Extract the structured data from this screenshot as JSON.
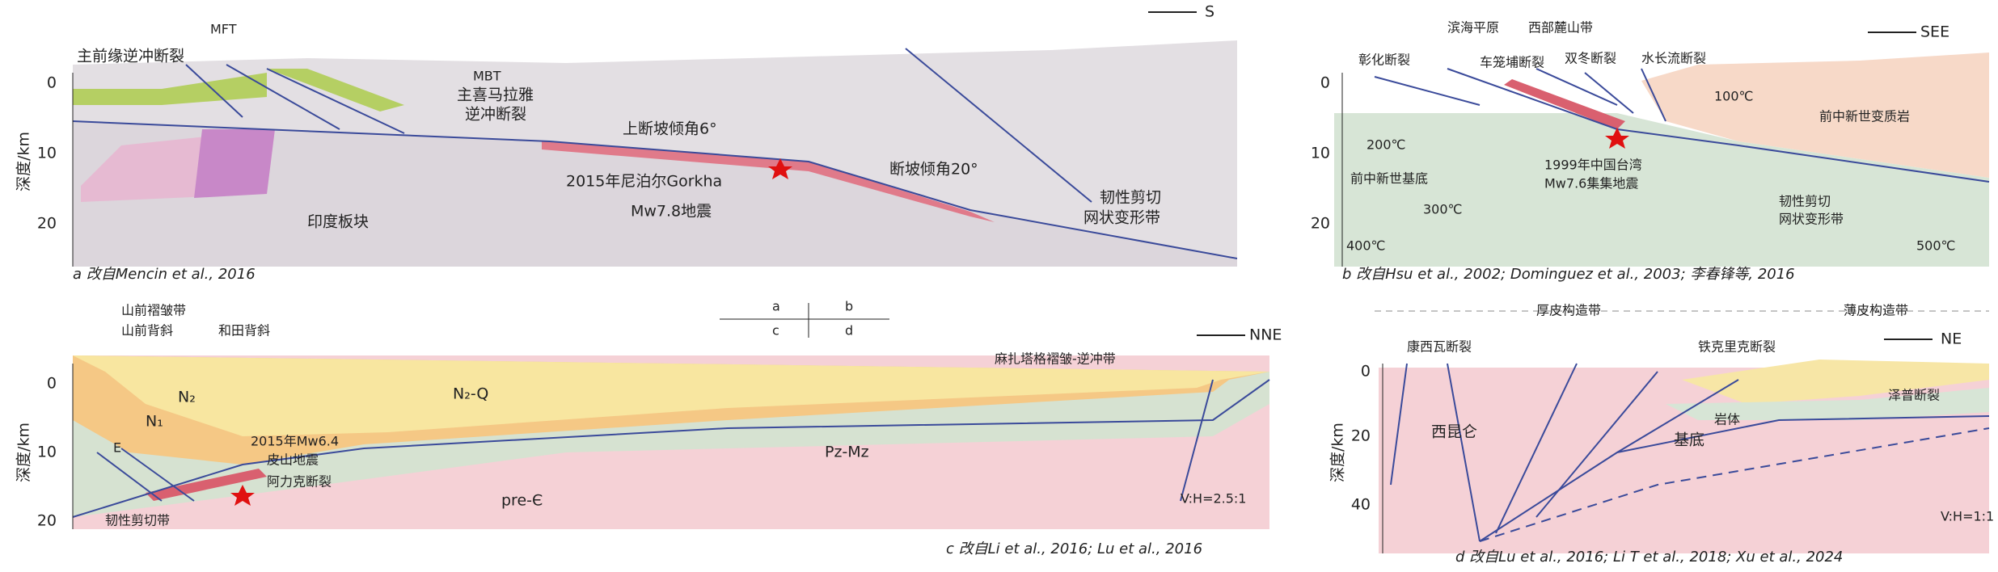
{
  "panel_a": {
    "direction": "S",
    "axis_title": "深度/km",
    "yticks": [
      "0",
      "10",
      "20"
    ],
    "labels": [
      "MFT",
      "主前缘逆冲断裂",
      "MBT",
      "主喜马拉雅",
      "逆冲断裂",
      "上断坡倾角6°",
      "2015年尼泊尔Gorkha",
      "Mw7.8地震",
      "断坡倾角20°",
      "印度板块",
      "韧性剪切",
      "网状变形带"
    ],
    "caption": "a 改自Mencin et al., 2016"
  },
  "panel_b": {
    "direction": "SEE",
    "yticks": [
      "0",
      "10",
      "20"
    ],
    "labels": [
      "滨海平原",
      "西部麓山带",
      "彰化断裂",
      "车笼埔断裂",
      "双冬断裂",
      "水长流断裂",
      "100℃",
      "200℃",
      "300℃",
      "400℃",
      "500℃",
      "前中新世变质岩",
      "前中新世基底",
      "1999年中国台湾",
      "Mw7.6集集地震",
      "韧性剪切",
      "网状变形带"
    ],
    "caption": "b 改自Hsu et al., 2002; Dominguez et al., 2003; 李春锋等, 2016"
  },
  "panel_c": {
    "direction": "NNE",
    "axis_title": "深度/km",
    "yticks": [
      "0",
      "10",
      "20"
    ],
    "labels": [
      "山前褶皱带",
      "山前背斜",
      "和田背斜",
      "麻扎塔格褶皱-逆冲带",
      "N₂",
      "N₁",
      "N₂-Q",
      "E",
      "Pz-Mz",
      "pre-Є",
      "2015年Mw6.4",
      "皮山地震",
      "阿力克断裂",
      "韧性剪切带",
      "V:H=2.5:1"
    ],
    "caption": "c 改自Li et al., 2016; Lu et al., 2016"
  },
  "index": [
    "a",
    "b",
    "c",
    "d"
  ],
  "panel_d": {
    "direction": "NE",
    "axis_title": "深度/km",
    "yticks": [
      "0",
      "20",
      "40"
    ],
    "labels": [
      "厚皮构造带",
      "薄皮构造带",
      "康西瓦断裂",
      "铁克里克断裂",
      "西昆仑",
      "基底",
      "岩体",
      "泽普断裂",
      "V:H=1:1"
    ],
    "caption": "d 改自Lu et al., 2016; Li T et al., 2018; Xu et al., 2024"
  }
}
